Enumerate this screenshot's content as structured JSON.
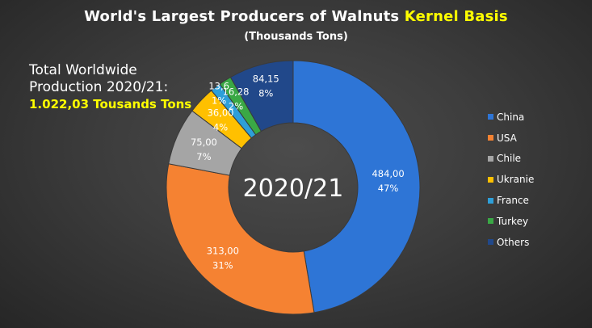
{
  "header": {
    "title_main": "World's Largest Producers  of Walnuts ",
    "title_highlight": "Kernel Basis",
    "subtitle": "(Thousands Tons)"
  },
  "note": {
    "line1": "Total Worldwide",
    "line2": "Production 2020/21:",
    "total": "1.022,03 Tousands Tons"
  },
  "chart_data": {
    "type": "pie",
    "variant": "doughnut",
    "title": "World's Largest Producers  of Walnuts Kernel Basis",
    "subtitle": "(Thousands Tons)",
    "center_label": "2020/21",
    "legend_position": "right",
    "slices": [
      {
        "name": "China",
        "value": 484.0,
        "value_label": "484,00",
        "pct_label": "47%",
        "color": "#2e75d6"
      },
      {
        "name": "USA",
        "value": 313.0,
        "value_label": "313,00",
        "pct_label": "31%",
        "color": "#f58232"
      },
      {
        "name": "Chile",
        "value": 75.0,
        "value_label": "75,00",
        "pct_label": "7%",
        "color": "#a5a5a5"
      },
      {
        "name": "Ukranie",
        "value": 36.0,
        "value_label": "36,00",
        "pct_label": "4%",
        "color": "#ffc000"
      },
      {
        "name": "France",
        "value": 13.6,
        "value_label": "13,6",
        "pct_label": "1%",
        "color": "#2e9fd8"
      },
      {
        "name": "Turkey",
        "value": 16.28,
        "value_label": "16,28",
        "pct_label": "2%",
        "color": "#3aa845"
      },
      {
        "name": "Others",
        "value": 84.15,
        "value_label": "84,15",
        "pct_label": "8%",
        "color": "#21488a"
      }
    ]
  }
}
